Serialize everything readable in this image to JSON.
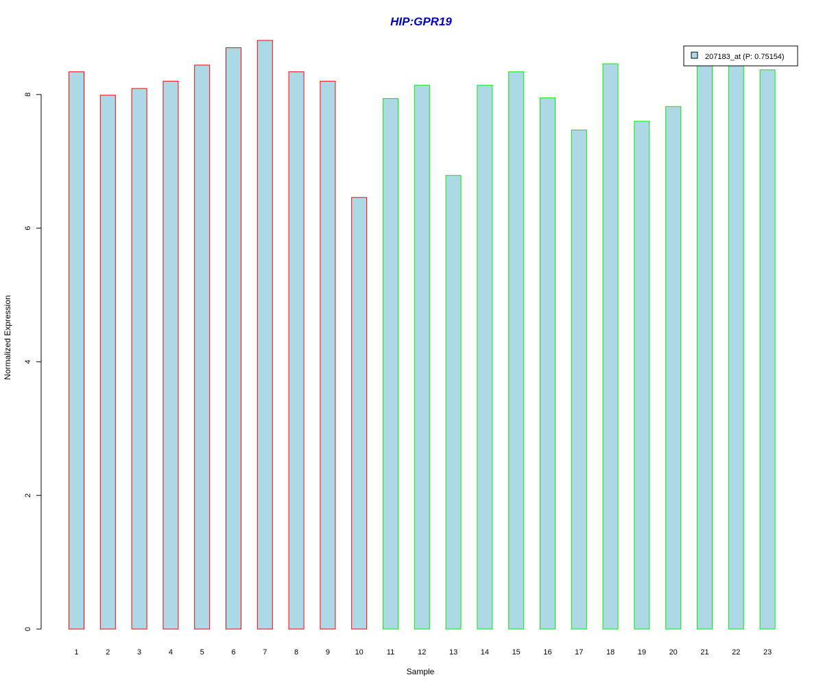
{
  "chart_data": {
    "type": "bar",
    "title": "HIP:GPR19",
    "xlabel": "Sample",
    "ylabel": "Normalized Expression",
    "categories": [
      "1",
      "2",
      "3",
      "4",
      "5",
      "6",
      "7",
      "8",
      "9",
      "10",
      "11",
      "12",
      "13",
      "14",
      "15",
      "16",
      "17",
      "18",
      "19",
      "20",
      "21",
      "22",
      "23"
    ],
    "series": [
      {
        "name": "207183_at (P: 0.75154)",
        "values": [
          8.34,
          7.99,
          8.09,
          8.2,
          8.44,
          8.7,
          8.81,
          8.34,
          8.2,
          6.46,
          7.94,
          8.14,
          6.79,
          8.14,
          8.34,
          7.95,
          7.47,
          8.46,
          7.6,
          7.82,
          8.46,
          8.46,
          8.37
        ]
      }
    ],
    "groups": [
      1,
      1,
      1,
      1,
      1,
      1,
      1,
      1,
      1,
      1,
      2,
      2,
      2,
      2,
      2,
      2,
      2,
      2,
      2,
      2,
      2,
      2,
      2
    ],
    "ylim": [
      0,
      8.8
    ],
    "yticks": [
      "0",
      "2",
      "4",
      "6",
      "8"
    ],
    "grid": false,
    "legend_position": "top-right",
    "colors": {
      "bar_fill": "#add8e6",
      "group1_border": "#ff0000",
      "group2_border": "#00ee00",
      "title": "#0000cc"
    }
  }
}
